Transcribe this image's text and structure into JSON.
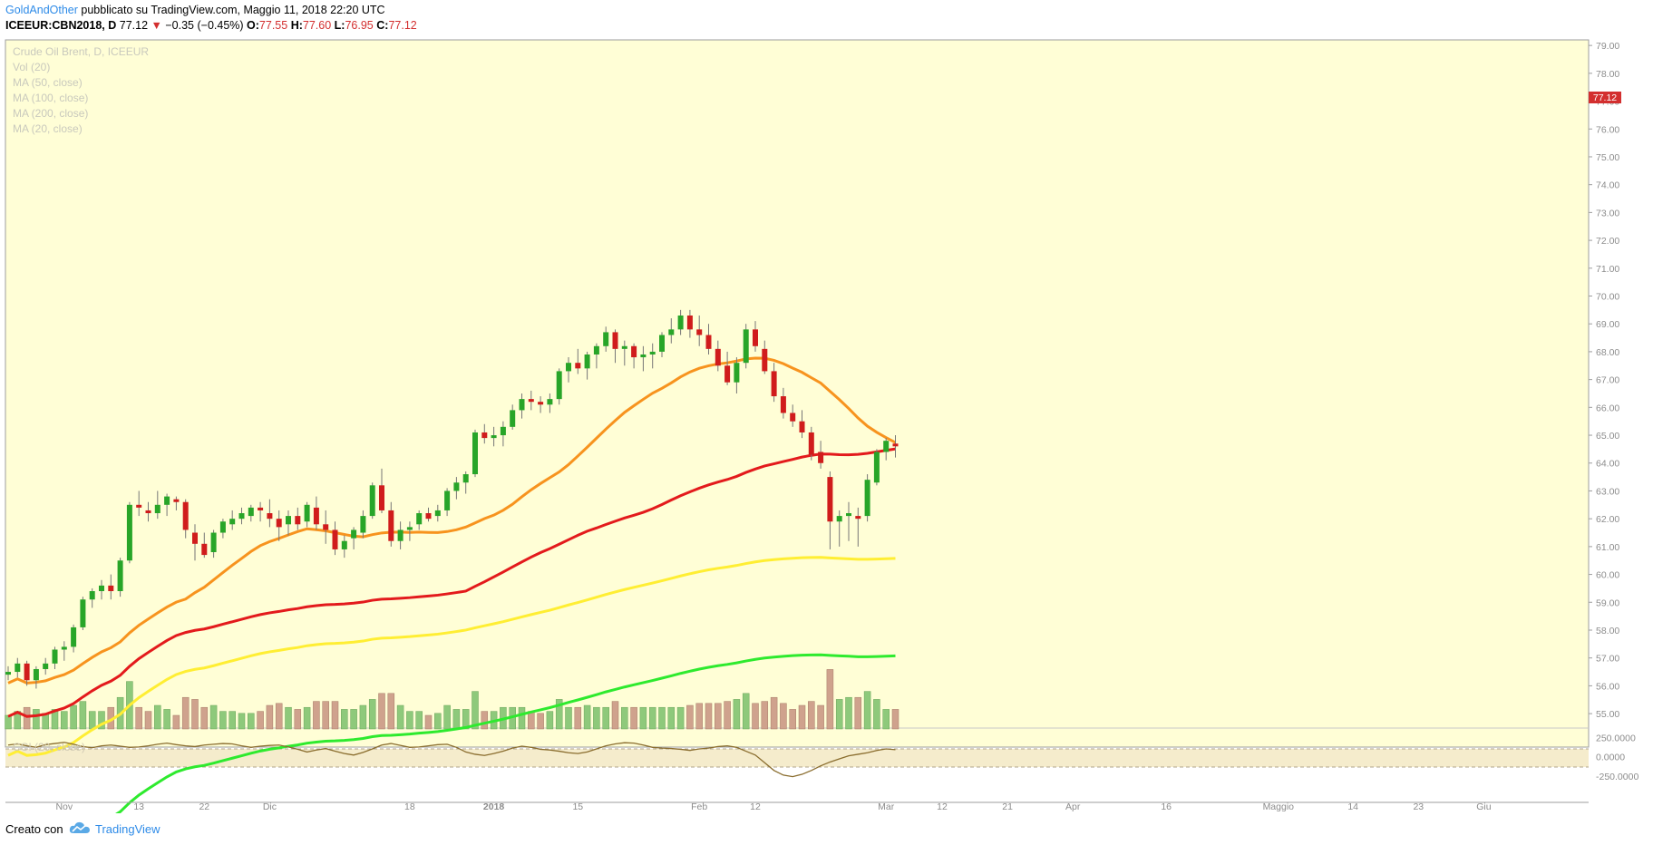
{
  "header": {
    "author": "GoldAndOther",
    "published_text": "pubblicato su TradingView.com, Maggio 11, 2018 22:20 UTC",
    "symbol": "ICEEUR:CBN2018, D",
    "last": "77.12",
    "change": "−0.35 (−0.45%)",
    "open_label": "O:",
    "open": "77.55",
    "high_label": "H:",
    "high": "77.60",
    "low_label": "L:",
    "low": "76.95",
    "close_label": "C:",
    "close": "77.12",
    "down_color": "#d32f2f"
  },
  "legend": {
    "title": "Crude Oil Brent, D, ICEEUR",
    "items": [
      "Vol (20)",
      "MA (50, close)",
      "MA (100, close)",
      "MA (200, close)",
      "MA (20, close)"
    ]
  },
  "indicator": {
    "label": "CCI (20, close)",
    "ticks": [
      "250.0000",
      "0.0000",
      "-250.0000"
    ]
  },
  "price_tag": "77.12",
  "footer": {
    "creato": "Creato con",
    "brand": "TradingView"
  },
  "chart_data": {
    "type": "candlestick",
    "y_ticks": [
      "79.00",
      "78.00",
      "77.00",
      "76.00",
      "75.00",
      "74.00",
      "73.00",
      "72.00",
      "71.00",
      "70.00",
      "69.00",
      "68.00",
      "67.00",
      "66.00",
      "65.00",
      "64.00",
      "63.00",
      "62.00",
      "61.00",
      "60.00",
      "59.00",
      "58.00",
      "57.00",
      "56.00",
      "55.00"
    ],
    "ylim": [
      54.45,
      79.2
    ],
    "x_ticks": [
      {
        "label": "Nov",
        "bar": 6
      },
      {
        "label": "13",
        "bar": 14
      },
      {
        "label": "22",
        "bar": 21
      },
      {
        "label": "Dic",
        "bar": 28
      },
      {
        "label": "18",
        "bar": 43
      },
      {
        "label": "2018",
        "bar": 52
      },
      {
        "label": "15",
        "bar": 61
      },
      {
        "label": "Feb",
        "bar": 74
      },
      {
        "label": "12",
        "bar": 80
      },
      {
        "label": "Mar",
        "bar": 94
      },
      {
        "label": "12",
        "bar": 100
      },
      {
        "label": "21",
        "bar": 107
      },
      {
        "label": "Apr",
        "bar": 114
      },
      {
        "label": "16",
        "bar": 124
      },
      {
        "label": "Maggio",
        "bar": 136
      },
      {
        "label": "14",
        "bar": 144
      },
      {
        "label": "23",
        "bar": 151
      },
      {
        "label": "Giu",
        "bar": 158
      }
    ],
    "ohlc": [
      [
        56.4,
        56.7,
        56.2,
        56.5
      ],
      [
        56.5,
        57.0,
        56.3,
        56.8
      ],
      [
        56.8,
        56.9,
        56.0,
        56.2
      ],
      [
        56.2,
        56.7,
        55.9,
        56.6
      ],
      [
        56.6,
        57.0,
        56.4,
        56.8
      ],
      [
        56.8,
        57.4,
        56.6,
        57.3
      ],
      [
        57.3,
        57.6,
        56.9,
        57.4
      ],
      [
        57.4,
        58.2,
        57.2,
        58.1
      ],
      [
        58.1,
        59.2,
        58.0,
        59.1
      ],
      [
        59.1,
        59.5,
        58.8,
        59.4
      ],
      [
        59.4,
        59.8,
        59.1,
        59.6
      ],
      [
        59.6,
        60.0,
        59.1,
        59.4
      ],
      [
        59.4,
        60.6,
        59.2,
        60.5
      ],
      [
        60.5,
        62.6,
        60.4,
        62.5
      ],
      [
        62.5,
        63.0,
        62.1,
        62.4
      ],
      [
        62.3,
        62.6,
        61.9,
        62.2
      ],
      [
        62.2,
        63.0,
        62.0,
        62.5
      ],
      [
        62.5,
        62.9,
        62.1,
        62.8
      ],
      [
        62.7,
        62.8,
        62.3,
        62.6
      ],
      [
        62.6,
        62.7,
        61.3,
        61.6
      ],
      [
        61.5,
        61.8,
        60.5,
        61.1
      ],
      [
        61.1,
        61.5,
        60.6,
        60.7
      ],
      [
        60.8,
        61.6,
        60.6,
        61.5
      ],
      [
        61.5,
        62.0,
        61.3,
        61.9
      ],
      [
        61.8,
        62.3,
        61.6,
        62.0
      ],
      [
        62.0,
        62.4,
        61.8,
        62.2
      ],
      [
        62.1,
        62.5,
        61.9,
        62.4
      ],
      [
        62.4,
        62.6,
        61.9,
        62.3
      ],
      [
        62.2,
        62.7,
        61.7,
        62.0
      ],
      [
        62.0,
        62.3,
        61.2,
        61.7
      ],
      [
        61.8,
        62.3,
        61.4,
        62.1
      ],
      [
        62.1,
        62.4,
        61.6,
        61.8
      ],
      [
        61.9,
        62.6,
        61.7,
        62.5
      ],
      [
        62.4,
        62.8,
        61.6,
        61.8
      ],
      [
        61.8,
        62.3,
        61.1,
        61.6
      ],
      [
        61.6,
        61.9,
        60.7,
        60.9
      ],
      [
        60.9,
        61.4,
        60.6,
        61.2
      ],
      [
        61.3,
        61.7,
        60.9,
        61.6
      ],
      [
        61.5,
        62.3,
        61.3,
        62.1
      ],
      [
        62.1,
        63.3,
        62.0,
        63.2
      ],
      [
        63.2,
        63.8,
        62.2,
        62.3
      ],
      [
        62.3,
        62.6,
        61.0,
        61.2
      ],
      [
        61.2,
        61.9,
        60.9,
        61.6
      ],
      [
        61.6,
        61.9,
        61.2,
        61.7
      ],
      [
        61.8,
        62.3,
        61.6,
        62.2
      ],
      [
        62.2,
        62.4,
        61.9,
        62.0
      ],
      [
        62.1,
        62.5,
        61.9,
        62.3
      ],
      [
        62.3,
        63.1,
        62.1,
        63.0
      ],
      [
        63.0,
        63.5,
        62.7,
        63.3
      ],
      [
        63.3,
        63.7,
        62.9,
        63.6
      ],
      [
        63.6,
        65.2,
        63.5,
        65.1
      ],
      [
        65.1,
        65.4,
        64.7,
        64.9
      ],
      [
        64.9,
        65.3,
        64.6,
        65.0
      ],
      [
        65.0,
        65.5,
        64.6,
        65.3
      ],
      [
        65.3,
        66.1,
        65.2,
        65.9
      ],
      [
        65.9,
        66.5,
        65.6,
        66.3
      ],
      [
        66.3,
        66.6,
        65.9,
        66.2
      ],
      [
        66.2,
        66.4,
        65.8,
        66.1
      ],
      [
        66.1,
        66.5,
        65.8,
        66.3
      ],
      [
        66.3,
        67.4,
        66.1,
        67.3
      ],
      [
        67.3,
        67.8,
        66.9,
        67.6
      ],
      [
        67.6,
        68.1,
        67.2,
        67.4
      ],
      [
        67.4,
        68.0,
        67.0,
        67.9
      ],
      [
        67.9,
        68.3,
        67.4,
        68.2
      ],
      [
        68.2,
        68.9,
        68.0,
        68.7
      ],
      [
        68.7,
        68.8,
        67.6,
        68.1
      ],
      [
        68.1,
        68.4,
        67.5,
        68.2
      ],
      [
        68.2,
        68.3,
        67.4,
        67.8
      ],
      [
        67.8,
        68.2,
        67.3,
        67.9
      ],
      [
        67.9,
        68.3,
        67.4,
        68.0
      ],
      [
        68.0,
        68.7,
        67.8,
        68.6
      ],
      [
        68.6,
        69.2,
        68.3,
        68.8
      ],
      [
        68.8,
        69.5,
        68.6,
        69.3
      ],
      [
        69.3,
        69.5,
        68.5,
        68.8
      ],
      [
        68.8,
        69.3,
        68.2,
        68.6
      ],
      [
        68.6,
        69.0,
        67.9,
        68.1
      ],
      [
        68.1,
        68.4,
        67.3,
        67.5
      ],
      [
        67.5,
        68.0,
        66.8,
        66.9
      ],
      [
        66.9,
        67.8,
        66.5,
        67.6
      ],
      [
        67.6,
        69.0,
        67.4,
        68.8
      ],
      [
        68.8,
        69.1,
        68.0,
        68.2
      ],
      [
        68.1,
        68.4,
        67.2,
        67.3
      ],
      [
        67.3,
        67.6,
        66.2,
        66.4
      ],
      [
        66.4,
        66.7,
        65.6,
        65.8
      ],
      [
        65.8,
        66.1,
        65.3,
        65.5
      ],
      [
        65.5,
        65.9,
        64.9,
        65.1
      ],
      [
        65.1,
        65.3,
        64.1,
        64.3
      ],
      [
        64.4,
        64.8,
        63.8,
        64.0
      ],
      [
        63.5,
        63.7,
        60.9,
        61.9
      ],
      [
        61.9,
        62.3,
        61.0,
        62.1
      ],
      [
        62.1,
        62.6,
        61.2,
        62.2
      ],
      [
        62.1,
        62.4,
        61.0,
        62.0
      ],
      [
        62.1,
        63.6,
        61.9,
        63.4
      ],
      [
        63.3,
        64.5,
        63.2,
        64.4
      ],
      [
        64.4,
        64.9,
        64.1,
        64.8
      ],
      [
        64.7,
        65.0,
        64.2,
        64.6
      ]
    ],
    "cci": [
      150,
      165,
      140,
      120,
      155,
      170,
      185,
      160,
      130,
      115,
      140,
      150,
      135,
      120,
      125,
      140,
      160,
      175,
      155,
      140,
      130,
      150,
      160,
      170,
      165,
      140,
      120,
      135,
      145,
      150,
      125,
      95,
      60,
      85,
      105,
      70,
      40,
      20,
      55,
      100,
      150,
      170,
      145,
      120,
      125,
      140,
      155,
      160,
      120,
      60,
      30,
      15,
      40,
      70,
      110,
      135,
      120,
      95,
      85,
      70,
      50,
      40,
      60,
      100,
      140,
      165,
      180,
      175,
      150,
      120,
      110,
      105,
      95,
      80,
      100,
      110,
      130,
      140,
      120,
      70,
      20,
      -80,
      -180,
      -240,
      -260,
      -230,
      -180,
      -120,
      -70,
      -30,
      10,
      30,
      50,
      80,
      100,
      90
    ]
  }
}
